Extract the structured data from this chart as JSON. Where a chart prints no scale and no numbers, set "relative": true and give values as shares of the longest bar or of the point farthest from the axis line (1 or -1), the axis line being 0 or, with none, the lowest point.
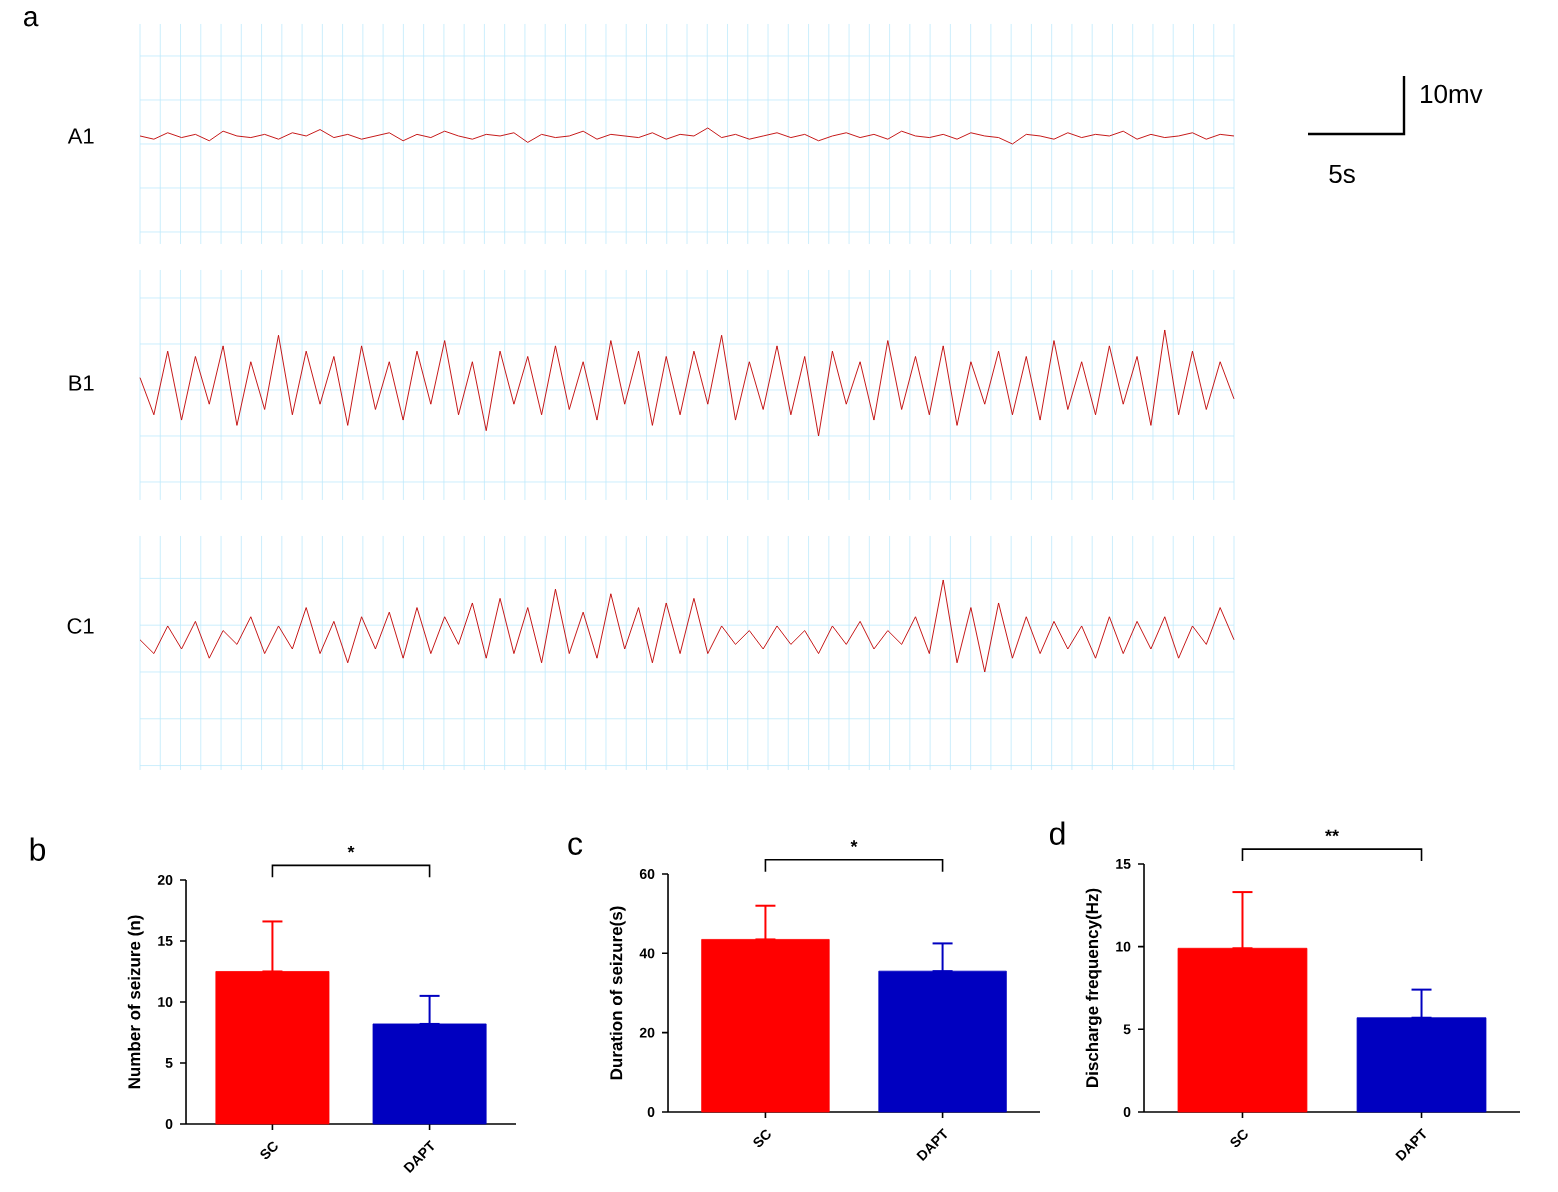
{
  "chart_data": [
    {
      "type": "line",
      "title": "a",
      "ylabel": "A1",
      "relative": true,
      "color": "#c00000",
      "grid": true,
      "annotations": [
        "10mv",
        "5s"
      ],
      "categories": [
        null,
        null,
        null,
        null,
        null,
        null,
        null,
        null,
        null,
        null,
        null,
        null,
        null,
        null,
        null,
        null,
        null,
        null,
        null,
        null,
        null,
        null,
        null,
        null,
        null,
        null,
        null,
        null,
        null,
        null,
        null,
        null,
        null,
        null,
        null,
        null,
        null,
        null,
        null,
        null,
        null,
        null,
        null,
        null,
        null,
        null,
        null,
        null,
        null,
        null,
        null,
        null,
        null,
        null,
        null,
        null,
        null,
        null,
        null,
        null,
        null,
        null,
        null,
        null,
        null,
        null,
        null,
        null,
        null,
        null,
        null,
        null,
        null,
        null,
        null,
        null,
        null,
        null,
        null,
        null
      ],
      "values": [
        0.5,
        0.3,
        0.7,
        0.4,
        0.6,
        0.2,
        0.8,
        0.5,
        0.4,
        0.6,
        0.3,
        0.7,
        0.5,
        0.9,
        0.4,
        0.6,
        0.3,
        0.5,
        0.7,
        0.2,
        0.6,
        0.4,
        0.8,
        0.5,
        0.3,
        0.6,
        0.5,
        0.7,
        0.1,
        0.6,
        0.4,
        0.5,
        0.8,
        0.3,
        0.6,
        0.5,
        0.4,
        0.7,
        0.3,
        0.6,
        0.5,
        1,
        0.4,
        0.6,
        0.3,
        0.5,
        0.7,
        0.4,
        0.6,
        0.2,
        0.5,
        0.7,
        0.4,
        0.6,
        0.3,
        0.8,
        0.5,
        0.4,
        0.6,
        0.3,
        0.7,
        0.5,
        0.4,
        0,
        0.6,
        0.5,
        0.3,
        0.7,
        0.4,
        0.6,
        0.5,
        0.8,
        0.3,
        0.6,
        0.4,
        0.5,
        0.7,
        0.3,
        0.6,
        0.5
      ]
    },
    {
      "type": "line",
      "ylabel": "B1",
      "relative": true,
      "color": "#c00000",
      "grid": true,
      "categories": [
        null,
        null,
        null,
        null,
        null,
        null,
        null,
        null,
        null,
        null,
        null,
        null,
        null,
        null,
        null,
        null,
        null,
        null,
        null,
        null,
        null,
        null,
        null,
        null,
        null,
        null,
        null,
        null,
        null,
        null,
        null,
        null,
        null,
        null,
        null,
        null,
        null,
        null,
        null,
        null,
        null,
        null,
        null,
        null,
        null,
        null,
        null,
        null,
        null,
        null,
        null,
        null,
        null,
        null,
        null,
        null,
        null,
        null,
        null,
        null,
        null,
        null,
        null,
        null,
        null,
        null,
        null,
        null,
        null,
        null,
        null,
        null,
        null,
        null,
        null,
        null,
        null,
        null,
        null,
        null
      ],
      "values": [
        0.55,
        0.2,
        0.8,
        0.15,
        0.75,
        0.3,
        0.85,
        0.1,
        0.7,
        0.25,
        0.95,
        0.2,
        0.8,
        0.3,
        0.75,
        0.1,
        0.85,
        0.25,
        0.7,
        0.15,
        0.8,
        0.3,
        0.9,
        0.2,
        0.7,
        0.05,
        0.8,
        0.3,
        0.75,
        0.2,
        0.85,
        0.25,
        0.7,
        0.15,
        0.9,
        0.3,
        0.8,
        0.1,
        0.75,
        0.2,
        0.8,
        0.3,
        0.95,
        0.15,
        0.7,
        0.25,
        0.85,
        0.2,
        0.75,
        0,
        0.8,
        0.3,
        0.7,
        0.15,
        0.9,
        0.25,
        0.75,
        0.2,
        0.85,
        0.1,
        0.7,
        0.3,
        0.8,
        0.2,
        0.75,
        0.15,
        0.9,
        0.25,
        0.7,
        0.2,
        0.85,
        0.3,
        0.75,
        0.1,
        1,
        0.2,
        0.8,
        0.25,
        0.7,
        0.35
      ]
    },
    {
      "type": "line",
      "ylabel": "C1",
      "relative": true,
      "color": "#c00000",
      "grid": true,
      "categories": [
        null,
        null,
        null,
        null,
        null,
        null,
        null,
        null,
        null,
        null,
        null,
        null,
        null,
        null,
        null,
        null,
        null,
        null,
        null,
        null,
        null,
        null,
        null,
        null,
        null,
        null,
        null,
        null,
        null,
        null,
        null,
        null,
        null,
        null,
        null,
        null,
        null,
        null,
        null,
        null,
        null,
        null,
        null,
        null,
        null,
        null,
        null,
        null,
        null,
        null,
        null,
        null,
        null,
        null,
        null,
        null,
        null,
        null,
        null,
        null,
        null,
        null,
        null,
        null,
        null,
        null,
        null,
        null,
        null,
        null,
        null,
        null,
        null,
        null,
        null,
        null,
        null,
        null,
        null,
        null
      ],
      "values": [
        0.35,
        0.2,
        0.5,
        0.25,
        0.55,
        0.15,
        0.45,
        0.3,
        0.6,
        0.2,
        0.5,
        0.25,
        0.7,
        0.2,
        0.55,
        0.1,
        0.6,
        0.25,
        0.65,
        0.15,
        0.7,
        0.2,
        0.6,
        0.3,
        0.75,
        0.15,
        0.8,
        0.2,
        0.7,
        0.1,
        0.9,
        0.2,
        0.65,
        0.15,
        0.85,
        0.25,
        0.7,
        0.1,
        0.75,
        0.2,
        0.8,
        0.2,
        0.5,
        0.3,
        0.45,
        0.25,
        0.5,
        0.3,
        0.45,
        0.2,
        0.5,
        0.3,
        0.55,
        0.25,
        0.45,
        0.3,
        0.6,
        0.2,
        1,
        0.1,
        0.7,
        0,
        0.75,
        0.15,
        0.6,
        0.2,
        0.55,
        0.25,
        0.5,
        0.15,
        0.6,
        0.2,
        0.55,
        0.25,
        0.6,
        0.15,
        0.5,
        0.3,
        0.7,
        0.35
      ]
    },
    {
      "type": "bar",
      "title": "b",
      "ylabel": "Number of seizure (n)",
      "categories": [
        "SC",
        "DAPT"
      ],
      "values": [
        12.5,
        8.2
      ],
      "colors": [
        "#ff0000",
        "#0000c0"
      ],
      "errors": [
        [
          12.5,
          16.6
        ],
        [
          8.2,
          10.5
        ]
      ],
      "ylim": [
        0,
        20
      ],
      "yticks": [
        0,
        5,
        10,
        15,
        20
      ],
      "annotations": [
        "*"
      ]
    },
    {
      "type": "bar",
      "title": "c",
      "ylabel": "Duration of seizure(s)",
      "categories": [
        "SC",
        "DAPT"
      ],
      "values": [
        43.5,
        35.5
      ],
      "colors": [
        "#ff0000",
        "#0000c0"
      ],
      "errors": [
        [
          43.5,
          52
        ],
        [
          35.5,
          42.5
        ]
      ],
      "ylim": [
        0,
        60
      ],
      "yticks": [
        0,
        20,
        40,
        60
      ],
      "annotations": [
        "*"
      ]
    },
    {
      "type": "bar",
      "title": "d",
      "ylabel": "Discharge frequency(Hz)",
      "categories": [
        "SC",
        "DAPT"
      ],
      "values": [
        9.9,
        5.7
      ],
      "colors": [
        "#ff0000",
        "#0000c0"
      ],
      "errors": [
        [
          9.9,
          13.3
        ],
        [
          5.7,
          7.4
        ]
      ],
      "ylim": [
        0,
        15
      ],
      "yticks": [
        0,
        5,
        10,
        15
      ],
      "annotations": [
        "**"
      ]
    }
  ]
}
